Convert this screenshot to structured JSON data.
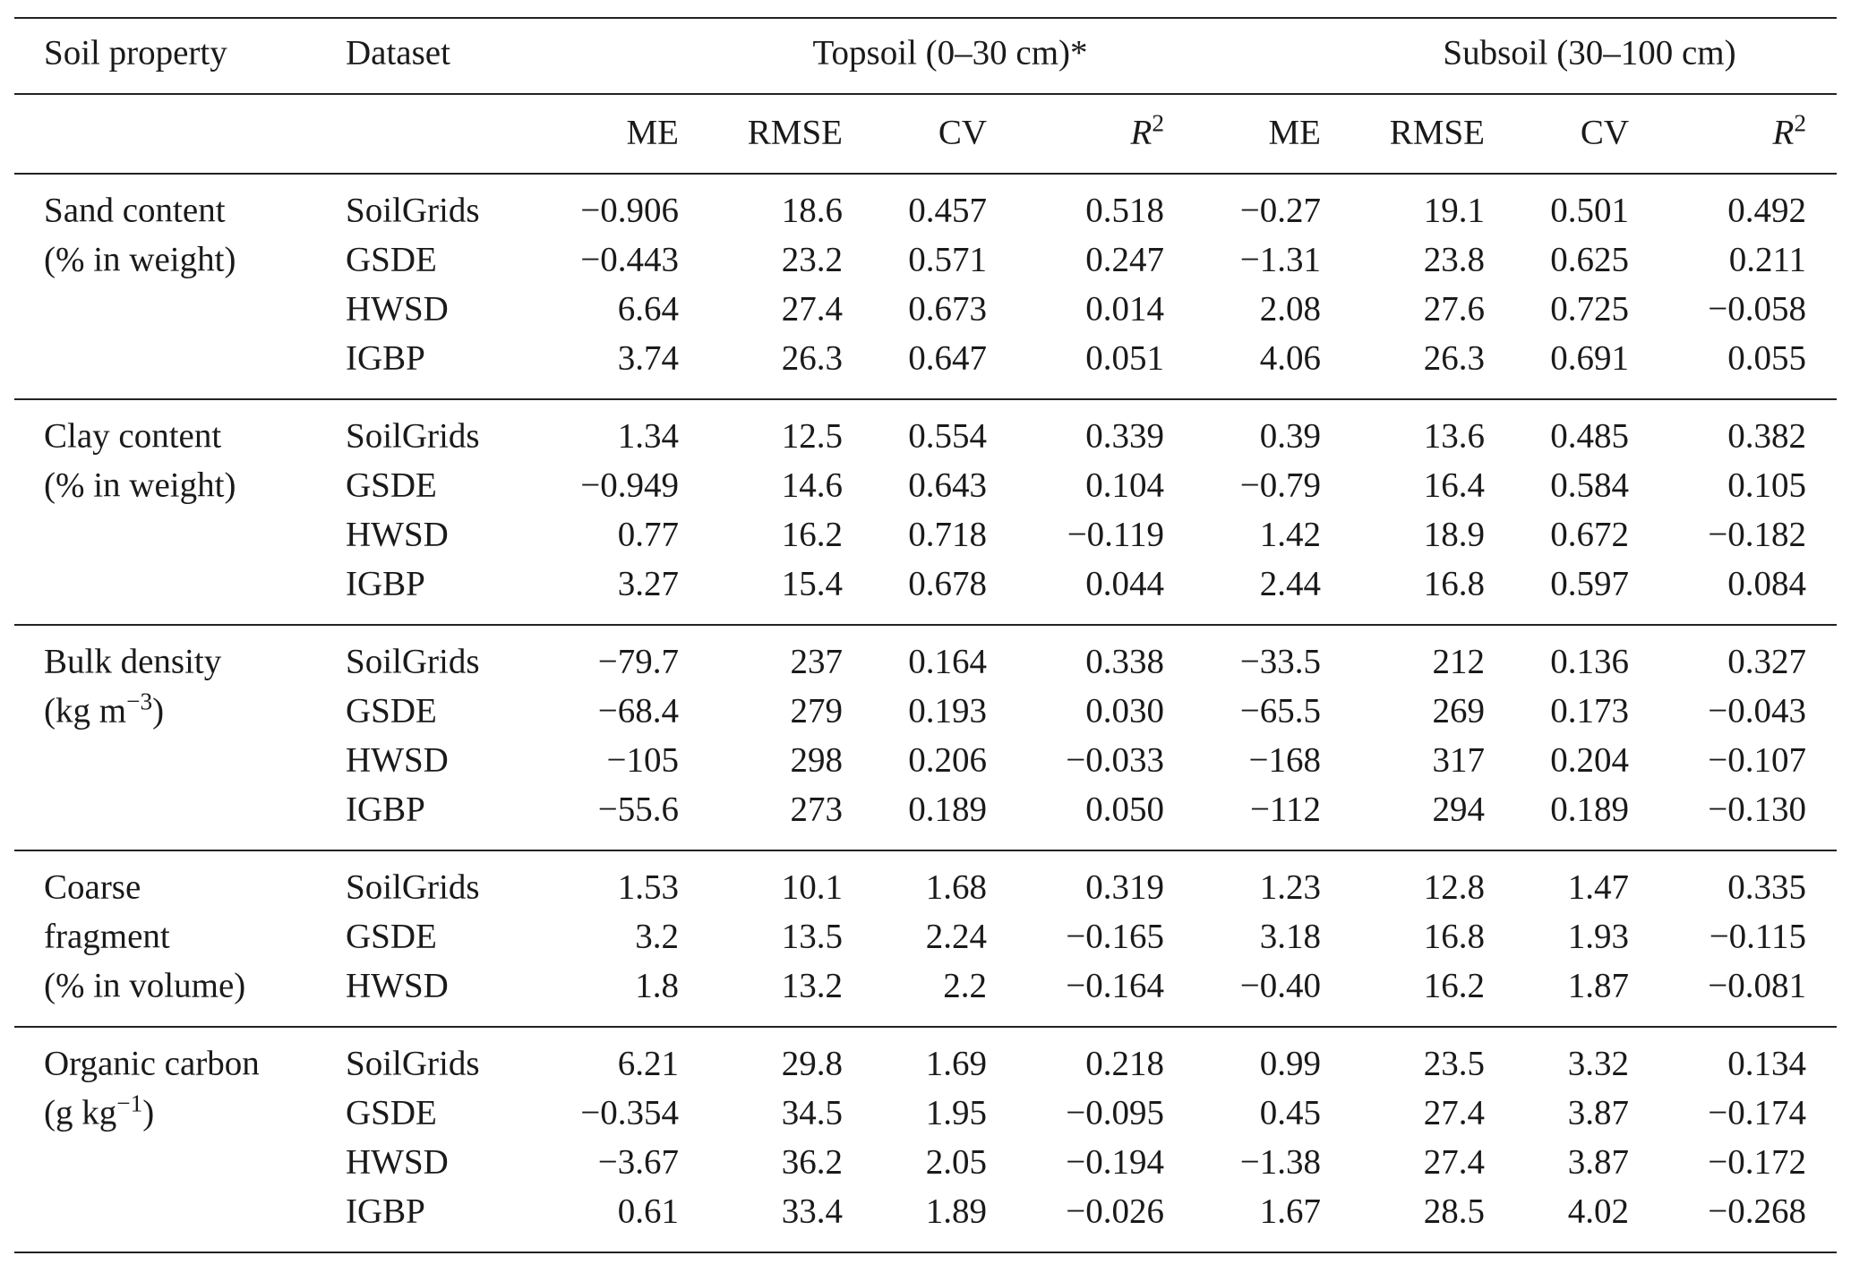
{
  "table": {
    "header": {
      "soil_property": "Soil property",
      "dataset": "Dataset",
      "topsoil": "Topsoil (0–30 cm)*",
      "subsoil": "Subsoil (30–100 cm)",
      "metrics": [
        {
          "text": "ME"
        },
        {
          "text": "RMSE"
        },
        {
          "text": "CV"
        },
        {
          "text": "R",
          "sup": "2"
        },
        {
          "text": "ME"
        },
        {
          "text": "RMSE"
        },
        {
          "text": "CV"
        },
        {
          "text": "R",
          "sup": "2"
        }
      ]
    },
    "groups": [
      {
        "property": [
          {
            "text": "Sand content"
          },
          {
            "text": "(% in weight)"
          }
        ],
        "rows": [
          {
            "dataset": "SoilGrids",
            "values": [
              "−0.906",
              "18.6",
              "0.457",
              "0.518",
              "−0.27",
              "19.1",
              "0.501",
              "0.492"
            ]
          },
          {
            "dataset": "GSDE",
            "values": [
              "−0.443",
              "23.2",
              "0.571",
              "0.247",
              "−1.31",
              "23.8",
              "0.625",
              "0.211"
            ]
          },
          {
            "dataset": "HWSD",
            "values": [
              "6.64",
              "27.4",
              "0.673",
              "0.014",
              "2.08",
              "27.6",
              "0.725",
              "−0.058"
            ]
          },
          {
            "dataset": "IGBP",
            "values": [
              "3.74",
              "26.3",
              "0.647",
              "0.051",
              "4.06",
              "26.3",
              "0.691",
              "0.055"
            ]
          }
        ]
      },
      {
        "property": [
          {
            "text": "Clay content"
          },
          {
            "text": "(% in weight)"
          }
        ],
        "rows": [
          {
            "dataset": "SoilGrids",
            "values": [
              "1.34",
              "12.5",
              "0.554",
              "0.339",
              "0.39",
              "13.6",
              "0.485",
              "0.382"
            ]
          },
          {
            "dataset": "GSDE",
            "values": [
              "−0.949",
              "14.6",
              "0.643",
              "0.104",
              "−0.79",
              "16.4",
              "0.584",
              "0.105"
            ]
          },
          {
            "dataset": "HWSD",
            "values": [
              "0.77",
              "16.2",
              "0.718",
              "−0.119",
              "1.42",
              "18.9",
              "0.672",
              "−0.182"
            ]
          },
          {
            "dataset": "IGBP",
            "values": [
              "3.27",
              "15.4",
              "0.678",
              "0.044",
              "2.44",
              "16.8",
              "0.597",
              "0.084"
            ]
          }
        ]
      },
      {
        "property": [
          {
            "text": "Bulk density"
          },
          {
            "text": "(kg m",
            "sup": "−3",
            "post": ")"
          }
        ],
        "rows": [
          {
            "dataset": "SoilGrids",
            "values": [
              "−79.7",
              "237",
              "0.164",
              "0.338",
              "−33.5",
              "212",
              "0.136",
              "0.327"
            ]
          },
          {
            "dataset": "GSDE",
            "values": [
              "−68.4",
              "279",
              "0.193",
              "0.030",
              "−65.5",
              "269",
              "0.173",
              "−0.043"
            ]
          },
          {
            "dataset": "HWSD",
            "values": [
              "−105",
              "298",
              "0.206",
              "−0.033",
              "−168",
              "317",
              "0.204",
              "−0.107"
            ]
          },
          {
            "dataset": "IGBP",
            "values": [
              "−55.6",
              "273",
              "0.189",
              "0.050",
              "−112",
              "294",
              "0.189",
              "−0.130"
            ]
          }
        ]
      },
      {
        "property": [
          {
            "text": "Coarse"
          },
          {
            "text": "fragment"
          },
          {
            "text": "(% in volume)"
          }
        ],
        "rows": [
          {
            "dataset": "SoilGrids",
            "values": [
              "1.53",
              "10.1",
              "1.68",
              "0.319",
              "1.23",
              "12.8",
              "1.47",
              "0.335"
            ]
          },
          {
            "dataset": "GSDE",
            "values": [
              "3.2",
              "13.5",
              "2.24",
              "−0.165",
              "3.18",
              "16.8",
              "1.93",
              "−0.115"
            ]
          },
          {
            "dataset": "HWSD",
            "values": [
              "1.8",
              "13.2",
              "2.2",
              "−0.164",
              "−0.40",
              "16.2",
              "1.87",
              "−0.081"
            ]
          }
        ]
      },
      {
        "property": [
          {
            "text": "Organic carbon"
          },
          {
            "text": "(g kg",
            "sup": "−1",
            "post": ")"
          }
        ],
        "rows": [
          {
            "dataset": "SoilGrids",
            "values": [
              "6.21",
              "29.8",
              "1.69",
              "0.218",
              "0.99",
              "23.5",
              "3.32",
              "0.134"
            ]
          },
          {
            "dataset": "GSDE",
            "values": [
              "−0.354",
              "34.5",
              "1.95",
              "−0.095",
              "0.45",
              "27.4",
              "3.87",
              "−0.174"
            ]
          },
          {
            "dataset": "HWSD",
            "values": [
              "−3.67",
              "36.2",
              "2.05",
              "−0.194",
              "−1.38",
              "27.4",
              "3.87",
              "−0.172"
            ]
          },
          {
            "dataset": "IGBP",
            "values": [
              "0.61",
              "33.4",
              "1.89",
              "−0.026",
              "1.67",
              "28.5",
              "4.02",
              "−0.268"
            ]
          }
        ]
      }
    ]
  }
}
